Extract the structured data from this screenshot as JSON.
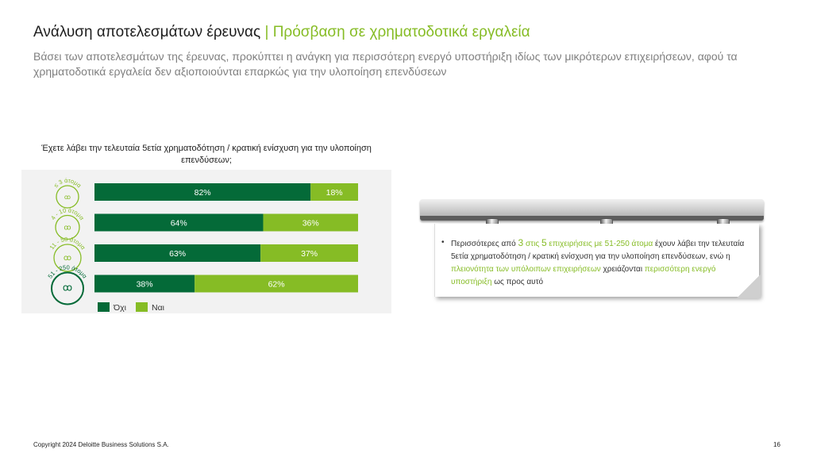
{
  "header": {
    "title_main": "Ανάλυση αποτελεσμάτων έρευνας",
    "title_sep": "|",
    "title_accent": "Πρόσβαση σε χρηματοδοτικά εργαλεία",
    "subtitle": "Βάσει των αποτελεσμάτων της έρευνας, προκύπτει η ανάγκη για περισσότερη ενεργό υποστήριξη ιδίως των μικρότερων επιχειρήσεων, αφού τα χρηματοδοτικά εργαλεία δεν αξιοποιούνται επαρκώς για την υλοποίηση επενδύσεων"
  },
  "colors": {
    "no": "#046a38",
    "yes": "#86bc25",
    "panel": "#f2f2f2"
  },
  "chart_data": {
    "type": "bar",
    "orientation": "horizontal",
    "stacked": true,
    "normalized": true,
    "title": "Έχετε λάβει την τελευταία 5ετία χρηματοδότηση / κρατική ενίσχυση για την υλοποίηση επενδύσεων;",
    "categories": [
      "≤ 3 άτομα",
      "4 - 10 άτομα",
      "11 - 50 άτομα",
      "51 - 250 άτομα"
    ],
    "series": [
      {
        "name": "Όχι",
        "values": [
          82,
          64,
          63,
          38
        ],
        "labels": [
          "82%",
          "64%",
          "63%",
          "38%"
        ],
        "color": "#046a38"
      },
      {
        "name": "Ναι",
        "values": [
          18,
          36,
          37,
          62
        ],
        "labels": [
          "18%",
          "36%",
          "37%",
          "62%"
        ],
        "color": "#86bc25"
      }
    ],
    "xlim": [
      0,
      100
    ],
    "legend": "bottom-left",
    "grid": false
  },
  "note": {
    "bullet": "•",
    "t1": "Περισσότερες από ",
    "h1": "3",
    "t2": " ",
    "h2": "στις",
    "t3": " ",
    "h3": "5",
    "t4": " ",
    "h4": "επιχειρήσεις με 51-250 άτομα",
    "t5": " έχουν λάβει την τελευταία 5ετία χρηματοδότηση / κρατική ενίσχυση για την υλοποίηση επενδύσεων, ενώ η ",
    "h5": "πλειονότητα των υπόλοιπων επιχειρήσεων",
    "t6": " χρειάζονται ",
    "h6": "περισσότερη ενεργό υποστήριξη",
    "t7": " ως προς αυτό"
  },
  "footer": {
    "copyright": "Copyright 2024 Deloitte Business Solutions S.A.",
    "page_number": "16"
  }
}
